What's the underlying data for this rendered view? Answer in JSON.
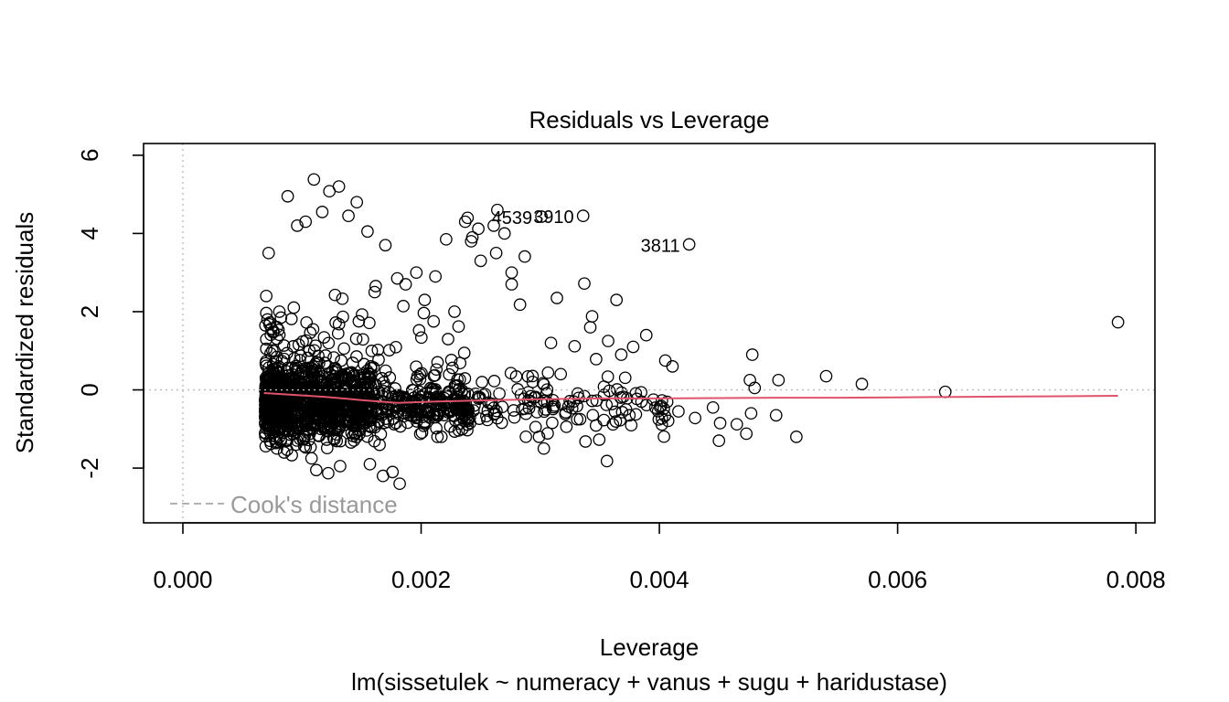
{
  "chart_data": {
    "type": "scatter",
    "title": "Residuals vs Leverage",
    "xlabel": "Leverage",
    "sublabel": "lm(sissetulek ~ numeracy + vanus + sugu + haridustase)",
    "ylabel": "Standardized residuals",
    "xlim": [
      -0.00033,
      0.00816
    ],
    "ylim": [
      -3.4,
      6.3
    ],
    "xticks": [
      0.0,
      0.002,
      0.004,
      0.006,
      0.008
    ],
    "xtick_labels": [
      "0.000",
      "0.002",
      "0.004",
      "0.006",
      "0.008"
    ],
    "yticks": [
      -2,
      0,
      2,
      4,
      6
    ],
    "ytick_labels": [
      "-2",
      "0",
      "2",
      "4",
      "6"
    ],
    "legend": {
      "label": "Cook's distance",
      "placement": "bottom-left",
      "line_style": "dashed"
    },
    "reference_lines": {
      "y": 0,
      "x": 0,
      "style": "dotted",
      "color": "#bebebe"
    },
    "grid": false,
    "point_style": "open-circle",
    "smooth_color": "#df536b",
    "smooth": {
      "x": [
        0.00068,
        0.0009,
        0.0012,
        0.0015,
        0.0018,
        0.0021,
        0.0025,
        0.003,
        0.0035,
        0.004,
        0.0045,
        0.005,
        0.0055,
        0.006,
        0.0065,
        0.007,
        0.0075,
        0.00785
      ],
      "y": [
        -0.08,
        -0.12,
        -0.18,
        -0.26,
        -0.33,
        -0.3,
        -0.27,
        -0.24,
        -0.22,
        -0.22,
        -0.21,
        -0.2,
        -0.2,
        -0.19,
        -0.18,
        -0.17,
        -0.16,
        -0.15
      ]
    },
    "labeled_points": [
      {
        "label": "4539",
        "x": 0.00301,
        "y": 4.43
      },
      {
        "label": "3910",
        "x": 0.00336,
        "y": 4.45
      },
      {
        "label": "3811",
        "x": 0.00425,
        "y": 3.72
      }
    ],
    "points_x": [
      0.00785,
      0.0064,
      0.0057,
      0.0054,
      0.005,
      0.00498,
      0.00478,
      0.00477,
      0.00473,
      0.00465,
      0.00451,
      0.0045,
      0.00445,
      0.00515,
      0.0048,
      0.00476,
      0.0043,
      0.00416,
      0.00411,
      0.00405,
      0.00395,
      0.00389,
      0.00385,
      0.00378,
      0.00372,
      0.00368,
      0.00357,
      0.00356,
      0.00342,
      0.00337,
      0.00314,
      0.00309,
      0.00303,
      0.00364,
      0.00338,
      0.00312,
      0.00299,
      0.00283,
      0.00276,
      0.00264,
      0.00248,
      0.00239,
      0.00237,
      0.00242,
      0.0025,
      0.00261,
      0.0027,
      0.00276,
      0.00287,
      0.00263,
      0.00243,
      0.00228,
      0.00221,
      0.00212,
      0.00203,
      0.00196,
      0.00187,
      0.0018,
      0.00176,
      0.0017,
      0.00161,
      0.00155,
      0.00146,
      0.00139,
      0.00131,
      0.00123,
      0.00117,
      0.0011,
      0.00103,
      0.00096,
      0.00088,
      0.00112,
      0.00108,
      0.00132,
      0.00095,
      0.00085,
      0.00079,
      0.00073,
      0.00072,
      0.00071,
      0.0007,
      0.00072,
      0.0007,
      0.00069,
      0.00076,
      0.00081,
      0.00122,
      0.00157,
      0.00168,
      0.00182
    ],
    "points_y": [
      1.73,
      -0.05,
      0.15,
      0.35,
      0.25,
      -0.65,
      0.9,
      -0.6,
      -1.12,
      -0.88,
      -0.85,
      -1.3,
      -0.45,
      -1.2,
      0.05,
      0.25,
      -0.72,
      -0.55,
      0.6,
      0.75,
      -0.25,
      1.4,
      -0.3,
      1.1,
      -0.5,
      0.9,
      1.25,
      -1.82,
      1.6,
      2.72,
      2.35,
      1.2,
      -1.5,
      2.3,
      -1.32,
      -0.4,
      -1.2,
      2.18,
      2.7,
      4.6,
      4.12,
      4.4,
      4.3,
      3.8,
      3.3,
      4.2,
      4.0,
      3.0,
      3.41,
      3.5,
      3.9,
      2.0,
      3.85,
      2.9,
      2.3,
      3.0,
      2.7,
      2.85,
      -2.1,
      3.7,
      2.5,
      4.05,
      4.8,
      4.45,
      5.2,
      5.08,
      4.55,
      5.38,
      4.3,
      4.2,
      4.95,
      -2.05,
      -1.75,
      -1.95,
      -1.4,
      -1.6,
      -1.5,
      -1.3,
      -0.9,
      1.8,
      2.4,
      3.5,
      1.05,
      -0.7,
      1.5,
      2.0,
      -2.13,
      -1.9,
      -2.2,
      -2.4
    ]
  }
}
